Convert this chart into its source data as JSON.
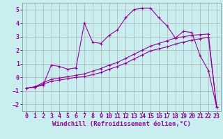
{
  "xlabel": "Windchill (Refroidissement éolien,°C)",
  "bg_color": "#c8eef0",
  "line_color": "#990099",
  "grid_color": "#b0b0b0",
  "xlim": [
    -0.5,
    23.5
  ],
  "ylim": [
    -2.5,
    5.5
  ],
  "xticks": [
    0,
    1,
    2,
    3,
    4,
    5,
    6,
    7,
    8,
    9,
    10,
    11,
    12,
    13,
    14,
    15,
    16,
    17,
    18,
    19,
    20,
    21,
    22,
    23
  ],
  "yticks": [
    -2,
    -1,
    0,
    1,
    2,
    3,
    4,
    5
  ],
  "series1_x": [
    0,
    1,
    2,
    3,
    4,
    5,
    6,
    7,
    8,
    9,
    10,
    11,
    12,
    13,
    14,
    15,
    16,
    17,
    18,
    19,
    20,
    21,
    22,
    23
  ],
  "series1_y": [
    -0.8,
    -0.7,
    -0.6,
    0.9,
    0.8,
    0.6,
    0.7,
    4.0,
    2.6,
    2.5,
    3.1,
    3.5,
    4.4,
    5.0,
    5.1,
    5.1,
    4.4,
    3.8,
    2.9,
    3.4,
    3.3,
    1.6,
    0.5,
    -2.2
  ],
  "series2_x": [
    0,
    1,
    2,
    3,
    4,
    5,
    6,
    7,
    8,
    9,
    10,
    11,
    12,
    13,
    14,
    15,
    16,
    17,
    18,
    19,
    20,
    21,
    22,
    23
  ],
  "series2_y": [
    -0.8,
    -0.75,
    -0.5,
    -0.3,
    -0.2,
    -0.1,
    0.0,
    0.05,
    0.2,
    0.35,
    0.6,
    0.8,
    1.05,
    1.35,
    1.65,
    1.95,
    2.1,
    2.25,
    2.45,
    2.6,
    2.75,
    2.85,
    2.95,
    -2.2
  ],
  "series3_x": [
    0,
    1,
    2,
    3,
    4,
    5,
    6,
    7,
    8,
    9,
    10,
    11,
    12,
    13,
    14,
    15,
    16,
    17,
    18,
    19,
    20,
    21,
    22,
    23
  ],
  "series3_y": [
    -0.8,
    -0.7,
    -0.4,
    -0.15,
    -0.05,
    0.05,
    0.15,
    0.25,
    0.45,
    0.65,
    0.9,
    1.1,
    1.4,
    1.7,
    2.0,
    2.3,
    2.5,
    2.7,
    2.9,
    3.0,
    3.1,
    3.15,
    3.2,
    -2.2
  ],
  "xlabel_fontsize": 6.5,
  "tick_fontsize": 6,
  "lw": 0.8,
  "marker_size": 3.5,
  "marker_lw": 0.8
}
